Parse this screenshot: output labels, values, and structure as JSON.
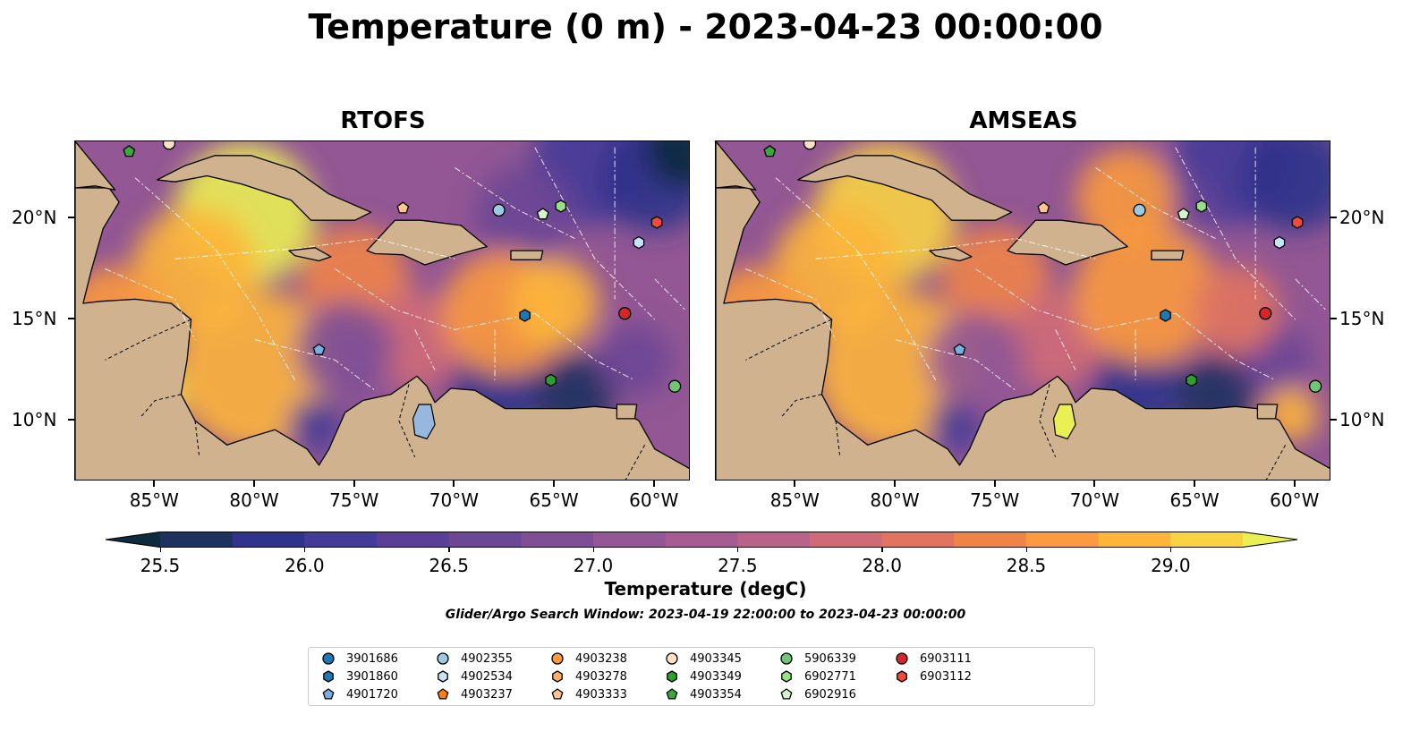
{
  "title": "Temperature (0 m) - 2023-04-23 00:00:00",
  "panels": [
    {
      "title": "RTOFS",
      "scheme": "rtofs"
    },
    {
      "title": "AMSEAS",
      "scheme": "amseas"
    }
  ],
  "x_ticks": [
    "85°W",
    "80°W",
    "75°W",
    "70°W",
    "65°W",
    "60°W"
  ],
  "y_ticks": [
    "20°N",
    "15°N",
    "10°N"
  ],
  "colorbar": {
    "label": "Temperature (degC)",
    "ticks": [
      "25.5",
      "26.0",
      "26.5",
      "27.0",
      "27.5",
      "28.0",
      "28.5",
      "29.0"
    ],
    "colors": [
      "#0d2a3f",
      "#1e3260",
      "#2f338b",
      "#443a98",
      "#5a3f97",
      "#6c4795",
      "#7f4f96",
      "#925794",
      "#a65c90",
      "#b9638a",
      "#cf6b77",
      "#e07460",
      "#f08448",
      "#fb9a3e",
      "#fdb53a",
      "#f8d342",
      "#eaf053"
    ]
  },
  "search_window": "Glider/Argo Search Window: 2023-04-19 22:00:00 to 2023-04-23 00:00:00",
  "legend": [
    {
      "id": "3901686",
      "shape": "circle",
      "color": "#1f77b4"
    },
    {
      "id": "3901860",
      "shape": "hexagon",
      "color": "#1f77b4"
    },
    {
      "id": "4901720",
      "shape": "pentagon",
      "color": "#7aaee0"
    },
    {
      "id": "4902355",
      "shape": "circle",
      "color": "#9ecae1"
    },
    {
      "id": "4902534",
      "shape": "hexagon",
      "color": "#c6e3f7"
    },
    {
      "id": "4903237",
      "shape": "pentagon",
      "color": "#ff7f0e"
    },
    {
      "id": "4903238",
      "shape": "circle",
      "color": "#fd9a42"
    },
    {
      "id": "4903278",
      "shape": "hexagon",
      "color": "#fdae6b"
    },
    {
      "id": "4903333",
      "shape": "pentagon",
      "color": "#fdc593"
    },
    {
      "id": "4903345",
      "shape": "circle",
      "color": "#fde0c5"
    },
    {
      "id": "4903349",
      "shape": "hexagon",
      "color": "#2ca02c"
    },
    {
      "id": "4903354",
      "shape": "pentagon",
      "color": "#3aa83a"
    },
    {
      "id": "5906339",
      "shape": "circle",
      "color": "#74c476"
    },
    {
      "id": "6902771",
      "shape": "hexagon",
      "color": "#98df8a"
    },
    {
      "id": "6902916",
      "shape": "pentagon",
      "color": "#d4f5cc"
    },
    {
      "id": "6903111",
      "shape": "circle",
      "color": "#d62728"
    },
    {
      "id": "6903112",
      "shape": "hexagon",
      "color": "#ef4a3a"
    }
  ],
  "map_markers": [
    {
      "id": "4903354",
      "lon": -86.3,
      "lat": 23.3
    },
    {
      "id": "4903345",
      "lon": -84.3,
      "lat": 23.7
    },
    {
      "id": "4902355",
      "lon": -67.8,
      "lat": 20.4
    },
    {
      "id": "4903333",
      "lon": -72.6,
      "lat": 20.5
    },
    {
      "id": "6902916",
      "lon": -65.6,
      "lat": 20.2
    },
    {
      "id": "6902771",
      "lon": -64.7,
      "lat": 20.6
    },
    {
      "id": "6903112",
      "lon": -59.9,
      "lat": 19.8
    },
    {
      "id": "4902534",
      "lon": -60.8,
      "lat": 18.8
    },
    {
      "id": "3901860",
      "lon": -66.5,
      "lat": 15.2
    },
    {
      "id": "6903111",
      "lon": -61.5,
      "lat": 15.3
    },
    {
      "id": "4901720",
      "lon": -76.8,
      "lat": 13.5
    },
    {
      "id": "4903349",
      "lon": -65.2,
      "lat": 12.0
    },
    {
      "id": "5906339",
      "lon": -59.0,
      "lat": 11.7
    }
  ]
}
